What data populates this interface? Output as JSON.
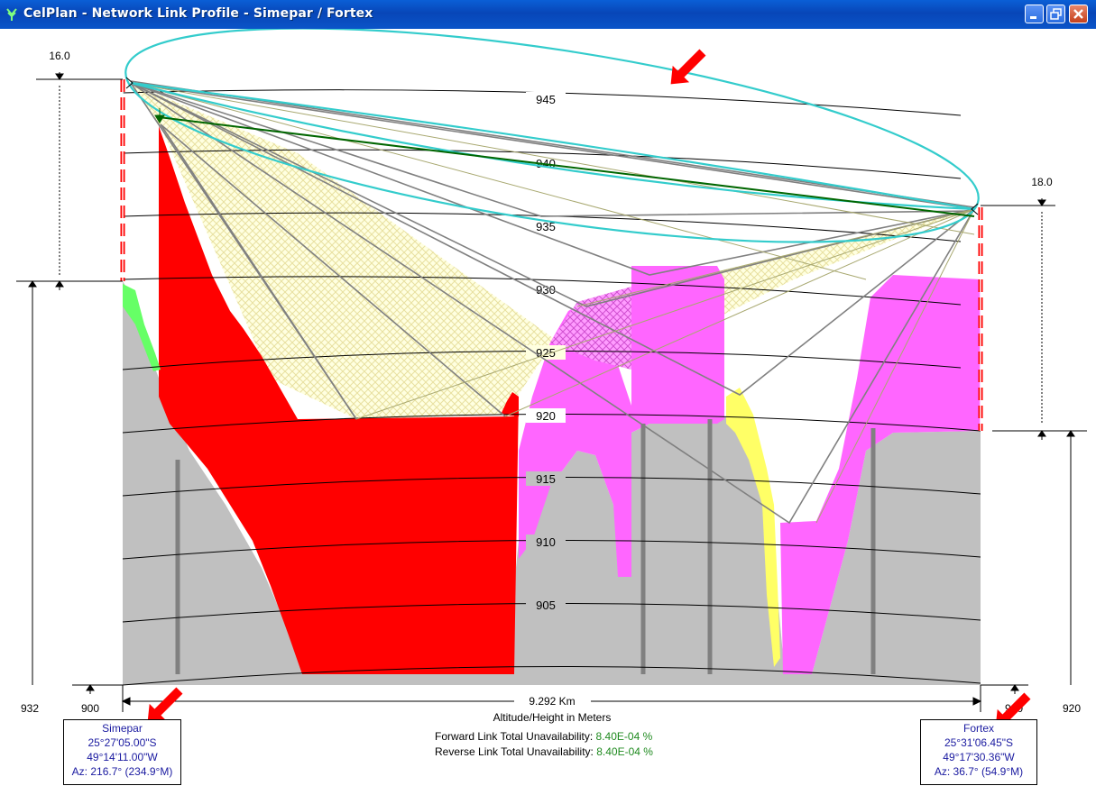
{
  "window": {
    "title": "CelPlan - Network Link Profile - Simepar / Fortex",
    "controls": [
      "minimize",
      "restore",
      "close"
    ]
  },
  "profile": {
    "contour_labels": [
      "945",
      "940",
      "935",
      "930",
      "925",
      "920",
      "915",
      "910",
      "905"
    ],
    "left_antenna_height": "16.0",
    "right_antenna_height": "18.0",
    "left_ground_altitude": "932",
    "right_ground_altitude": "920",
    "base_altitude_left": "900",
    "base_altitude_right": "900",
    "distance": "9.292 Km",
    "units_caption": "Altitude/Height in Meters"
  },
  "unavailability": {
    "forward_label": "Forward Link Total Unavailability:",
    "forward_value": "8.40E-04 %",
    "reverse_label": "Reverse Link Total Unavailability:",
    "reverse_value": "8.40E-04 %"
  },
  "sites": {
    "left": {
      "name": "Simepar",
      "lat": "25°27'05.00\"S",
      "lon": "49°14'11.00\"W",
      "az": "Az: 216.7° (234.9°M)"
    },
    "right": {
      "name": "Fortex",
      "lat": "25°31'06.45\"S",
      "lon": "49°17'30.36\"W",
      "az": "Az: 36.7° (54.9°M)"
    }
  },
  "colors": {
    "terrain": "#c0c0c0",
    "obstruction_red": "#ff0000",
    "obstruction_magenta": "#ff66ff",
    "obstruction_yellow": "#ffff66",
    "fresnel_cyan": "#33cccc",
    "path_green": "#006600",
    "annotation_arrow": "#ff0000"
  }
}
